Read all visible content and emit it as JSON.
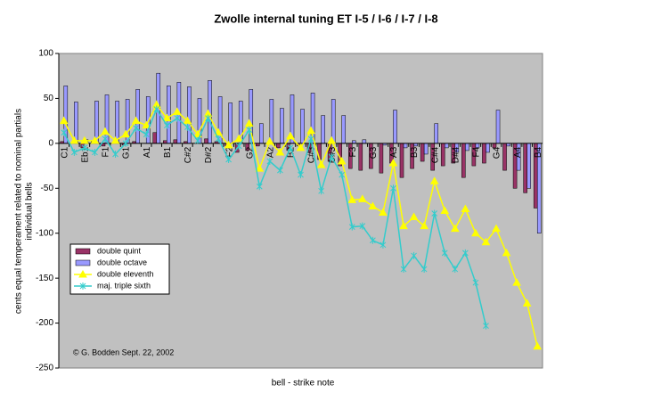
{
  "chart_data": {
    "type": "bar-line",
    "title": "Zwolle internal tuning ET I-5 / I-6 / I-7 / I-8",
    "x_label": "bell - strike note",
    "y_label": [
      "cents equal temperament related to nominal partials",
      "individual bells"
    ],
    "annotation": "© G. Bodden Sept. 22, 2002",
    "categories": [
      "C1",
      null,
      "Eb1",
      null,
      "F1",
      null,
      "G1",
      null,
      "A1",
      null,
      "B1",
      null,
      "C#2",
      null,
      "D#2",
      null,
      "F2",
      null,
      "G2",
      null,
      "A2",
      null,
      "B2",
      null,
      "C#3",
      null,
      "D#3",
      null,
      "F3",
      null,
      "G3",
      null,
      "A3",
      null,
      "B3",
      null,
      "C#4",
      null,
      "D#4",
      null,
      "F4",
      null,
      "G4",
      null,
      "A4",
      null,
      "B4"
    ],
    "series": [
      {
        "name": "double quint",
        "kind": "bar",
        "color": "#993366",
        "values": [
          2,
          0,
          -5,
          2,
          -3,
          0,
          -2,
          2,
          0,
          12,
          3,
          4,
          2,
          0,
          5,
          2,
          -3,
          -10,
          -8,
          -3,
          0,
          -5,
          -8,
          -3,
          -10,
          -18,
          -20,
          -25,
          -28,
          -30,
          -28,
          -33,
          -22,
          -38,
          -28,
          -20,
          -30,
          -25,
          -22,
          -38,
          -25,
          -22,
          -5,
          -30,
          -50,
          -55,
          -72
        ]
      },
      {
        "name": "double octave",
        "kind": "bar",
        "color": "#9999ff",
        "values": [
          64,
          46,
          4,
          47,
          54,
          47,
          49,
          60,
          52,
          78,
          64,
          68,
          63,
          50,
          70,
          52,
          45,
          47,
          60,
          22,
          49,
          39,
          54,
          38,
          56,
          31,
          49,
          31,
          3,
          4,
          0,
          -2,
          37,
          -5,
          -3,
          -12,
          22,
          -5,
          -10,
          -8,
          -5,
          -10,
          37,
          -3,
          -30,
          -50,
          -100
        ]
      },
      {
        "name": "double eleventh",
        "kind": "line",
        "marker": "triangle",
        "color": "#ffff00",
        "values": [
          25,
          3,
          3,
          3,
          13,
          3,
          10,
          25,
          20,
          43,
          28,
          35,
          25,
          10,
          33,
          12,
          -2,
          5,
          22,
          -28,
          2,
          -10,
          8,
          -5,
          14,
          -24,
          3,
          -20,
          -63,
          -62,
          -70,
          -77,
          -22,
          -92,
          -82,
          -92,
          -42,
          -75,
          -95,
          -73,
          -100,
          -110,
          -95,
          -122,
          -155,
          -178,
          -226
        ]
      },
      {
        "name": "maj. triple sixth",
        "kind": "line",
        "marker": "star",
        "color": "#33cccc",
        "values": [
          12,
          -10,
          -5,
          -10,
          5,
          -12,
          0,
          17,
          10,
          38,
          20,
          28,
          18,
          3,
          28,
          5,
          -18,
          -3,
          15,
          -48,
          -20,
          -30,
          -5,
          -35,
          5,
          -53,
          -15,
          -35,
          -93,
          -92,
          -108,
          -113,
          -50,
          -140,
          -125,
          -140,
          -78,
          -122,
          -140,
          -122,
          -155,
          -203,
          null,
          null,
          null,
          null,
          null
        ]
      }
    ],
    "ylim": [
      -250,
      100
    ],
    "yticks": [
      -250,
      -200,
      -150,
      -100,
      -50,
      0,
      50,
      100
    ],
    "grid": false,
    "legend": "lower-left",
    "plot_background": "#c0c0c0"
  }
}
